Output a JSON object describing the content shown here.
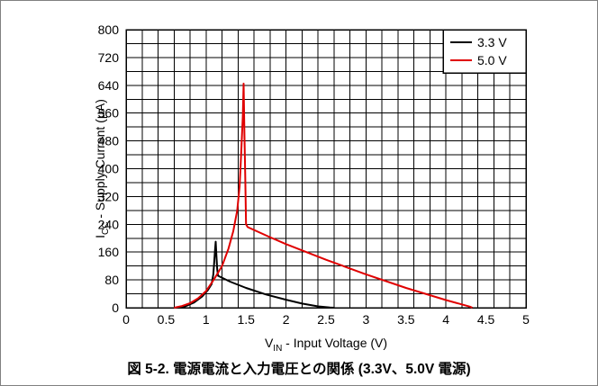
{
  "caption": "図 5-2. 電源電流と入力電圧との関係 (3.3V、5.0V 電源)",
  "chart_data": {
    "type": "line",
    "title": "",
    "xlabel": {
      "main": "V",
      "sub": "IN",
      "rest": " - Input Voltage (V)"
    },
    "ylabel": {
      "main": "I",
      "sub": "CC",
      "rest": " - Supply Current (µA)"
    },
    "xlim": [
      0,
      5
    ],
    "ylim": [
      0,
      800
    ],
    "x_ticks": [
      0,
      0.5,
      1,
      1.5,
      2,
      2.5,
      3,
      3.5,
      4,
      4.5,
      5
    ],
    "x_tick_labels": [
      "0",
      "0.5",
      "1",
      "1.5",
      "2",
      "2.5",
      "3",
      "3.5",
      "4",
      "4.5",
      "5"
    ],
    "y_ticks": [
      0,
      80,
      160,
      240,
      320,
      400,
      480,
      560,
      640,
      720,
      800
    ],
    "y_tick_labels": [
      "0",
      "80",
      "160",
      "240",
      "320",
      "400",
      "480",
      "560",
      "640",
      "720",
      "800"
    ],
    "grid": true,
    "grid_minor_x_step": 0.2,
    "grid_minor_y_step": 40,
    "legend": "top-right",
    "series": [
      {
        "name": "3.3 V",
        "color": "#000000",
        "points": [
          [
            0.65,
            0
          ],
          [
            0.75,
            5
          ],
          [
            0.85,
            15
          ],
          [
            0.95,
            32
          ],
          [
            1.02,
            50
          ],
          [
            1.07,
            68
          ],
          [
            1.09,
            95
          ],
          [
            1.1,
            125
          ],
          [
            1.11,
            160
          ],
          [
            1.12,
            190
          ],
          [
            1.13,
            150
          ],
          [
            1.14,
            110
          ],
          [
            1.15,
            92
          ],
          [
            1.3,
            75
          ],
          [
            1.5,
            57
          ],
          [
            1.75,
            38
          ],
          [
            2.0,
            23
          ],
          [
            2.2,
            12
          ],
          [
            2.4,
            4
          ],
          [
            2.55,
            0.5
          ],
          [
            2.6,
            0
          ]
        ]
      },
      {
        "name": "5.0 V",
        "color": "#e00000",
        "points": [
          [
            0.6,
            0
          ],
          [
            0.7,
            5
          ],
          [
            0.8,
            13
          ],
          [
            0.9,
            27
          ],
          [
            1.0,
            48
          ],
          [
            1.1,
            82
          ],
          [
            1.2,
            120
          ],
          [
            1.28,
            170
          ],
          [
            1.34,
            220
          ],
          [
            1.39,
            280
          ],
          [
            1.42,
            350
          ],
          [
            1.44,
            450
          ],
          [
            1.46,
            550
          ],
          [
            1.47,
            645
          ],
          [
            1.48,
            500
          ],
          [
            1.49,
            380
          ],
          [
            1.5,
            240
          ],
          [
            1.52,
            232
          ],
          [
            1.8,
            203
          ],
          [
            2.0,
            183
          ],
          [
            2.5,
            138
          ],
          [
            3.0,
            96
          ],
          [
            3.5,
            57
          ],
          [
            4.0,
            22
          ],
          [
            4.3,
            3
          ],
          [
            4.33,
            0
          ]
        ]
      }
    ]
  }
}
